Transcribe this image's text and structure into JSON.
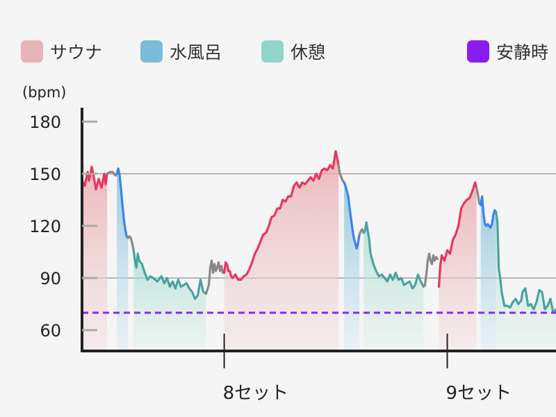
{
  "legend": [
    {
      "label": "サウナ",
      "color": "#e8b4b8"
    },
    {
      "label": "水風呂",
      "color": "#7bbcd9"
    },
    {
      "label": "休憩",
      "color": "#93d4c8"
    },
    {
      "label": "安静時",
      "color": "#8a1cf0"
    }
  ],
  "chart_data": {
    "type": "line",
    "title": "",
    "ylabel": "(bpm)",
    "ylim": [
      48,
      190
    ],
    "xlim": [
      0,
      340
    ],
    "yticks": [
      60,
      90,
      120,
      150,
      180
    ],
    "xticks": [
      {
        "x": 102,
        "label": "8セット"
      },
      {
        "x": 262,
        "label": "9セット"
      }
    ],
    "resting_hr": 70,
    "grid": "horizontal at 90 and 150",
    "phase_colors": {
      "sauna": "#e8365e",
      "cold": "#3b82f0",
      "rest": "#4aa39e",
      "transition": "#888888"
    },
    "series": [
      {
        "phase": "sauna",
        "points": [
          [
            0,
            146
          ],
          [
            2,
            143
          ],
          [
            4,
            151
          ],
          [
            5,
            146
          ],
          [
            7,
            154
          ],
          [
            8,
            150
          ],
          [
            10,
            141
          ],
          [
            12,
            147
          ],
          [
            14,
            142
          ],
          [
            16,
            150
          ],
          [
            17,
            144
          ],
          [
            18,
            150
          ]
        ]
      },
      {
        "phase": "transition",
        "points": [
          [
            18,
            150
          ],
          [
            20,
            151
          ],
          [
            22,
            151
          ],
          [
            24,
            149
          ],
          [
            25,
            150
          ]
        ]
      },
      {
        "phase": "cold",
        "points": [
          [
            25,
            150
          ],
          [
            26,
            153
          ],
          [
            27,
            149
          ],
          [
            28,
            141
          ],
          [
            29,
            132
          ],
          [
            30,
            124
          ],
          [
            31,
            118
          ],
          [
            32,
            114
          ],
          [
            33,
            113
          ]
        ]
      },
      {
        "phase": "transition",
        "points": [
          [
            33,
            113
          ],
          [
            34,
            114
          ],
          [
            35,
            113
          ],
          [
            36,
            110
          ],
          [
            37,
            106
          ]
        ]
      },
      {
        "phase": "rest",
        "points": [
          [
            37,
            106
          ],
          [
            38,
            100
          ],
          [
            39,
            96
          ],
          [
            40,
            104
          ],
          [
            41,
            100
          ],
          [
            43,
            98
          ],
          [
            45,
            93
          ],
          [
            47,
            89
          ],
          [
            49,
            91
          ],
          [
            51,
            90
          ],
          [
            54,
            88
          ],
          [
            57,
            91
          ],
          [
            59,
            87
          ],
          [
            61,
            90
          ],
          [
            63,
            85
          ],
          [
            65,
            88
          ],
          [
            67,
            84
          ],
          [
            69,
            89
          ],
          [
            71,
            85
          ],
          [
            73,
            86
          ],
          [
            75,
            87
          ],
          [
            77,
            84
          ],
          [
            79,
            82
          ],
          [
            81,
            78
          ],
          [
            83,
            80
          ],
          [
            85,
            89
          ],
          [
            87,
            82
          ],
          [
            89,
            81
          ]
        ]
      },
      {
        "phase": "transition",
        "points": [
          [
            89,
            81
          ],
          [
            91,
            86
          ],
          [
            92,
            96
          ],
          [
            93,
            100
          ],
          [
            94,
            93
          ],
          [
            95,
            98
          ],
          [
            96,
            94
          ],
          [
            97,
            96
          ],
          [
            98,
            99
          ],
          [
            99,
            94
          ],
          [
            100,
            97
          ],
          [
            101,
            93
          ]
        ]
      },
      {
        "phase": "sauna",
        "points": [
          [
            102,
            93
          ],
          [
            103,
            99
          ],
          [
            104,
            98
          ],
          [
            105,
            94
          ],
          [
            106,
            94
          ],
          [
            107,
            91
          ],
          [
            108,
            90
          ],
          [
            110,
            92
          ],
          [
            112,
            89
          ],
          [
            114,
            89
          ],
          [
            116,
            91
          ],
          [
            118,
            92
          ],
          [
            120,
            95
          ],
          [
            122,
            99
          ],
          [
            124,
            104
          ],
          [
            126,
            107
          ],
          [
            128,
            111
          ],
          [
            130,
            115
          ],
          [
            132,
            116
          ],
          [
            134,
            120
          ],
          [
            136,
            125
          ],
          [
            138,
            126
          ],
          [
            140,
            130
          ],
          [
            142,
            130
          ],
          [
            144,
            135
          ],
          [
            146,
            134
          ],
          [
            148,
            137
          ],
          [
            150,
            137
          ],
          [
            152,
            143
          ],
          [
            154,
            145
          ],
          [
            156,
            142
          ],
          [
            158,
            145
          ],
          [
            160,
            144
          ],
          [
            162,
            146
          ],
          [
            164,
            148
          ],
          [
            166,
            146
          ],
          [
            168,
            150
          ],
          [
            170,
            147
          ],
          [
            172,
            152
          ],
          [
            174,
            153
          ],
          [
            176,
            152
          ],
          [
            178,
            155
          ],
          [
            180,
            153
          ],
          [
            182,
            163
          ],
          [
            184,
            155
          ]
        ]
      },
      {
        "phase": "transition",
        "points": [
          [
            184,
            155
          ],
          [
            185,
            150
          ],
          [
            186,
            148
          ],
          [
            187,
            146
          ],
          [
            188,
            145
          ]
        ]
      },
      {
        "phase": "cold",
        "points": [
          [
            188,
            145
          ],
          [
            189,
            143
          ],
          [
            190,
            140
          ],
          [
            191,
            137
          ],
          [
            192,
            130
          ],
          [
            193,
            124
          ],
          [
            194,
            118
          ],
          [
            195,
            113
          ],
          [
            196,
            110
          ],
          [
            197,
            107
          ],
          [
            198,
            110
          ],
          [
            199,
            115
          ]
        ]
      },
      {
        "phase": "transition",
        "points": [
          [
            199,
            115
          ],
          [
            200,
            117
          ],
          [
            201,
            118
          ],
          [
            202,
            116
          ]
        ]
      },
      {
        "phase": "rest",
        "points": [
          [
            202,
            116
          ],
          [
            203,
            117
          ],
          [
            204,
            122
          ],
          [
            205,
            117
          ],
          [
            206,
            112
          ],
          [
            207,
            104
          ],
          [
            209,
            98
          ],
          [
            211,
            94
          ],
          [
            213,
            91
          ],
          [
            215,
            92
          ],
          [
            217,
            90
          ],
          [
            219,
            88
          ],
          [
            221,
            92
          ],
          [
            223,
            89
          ],
          [
            225,
            93
          ],
          [
            227,
            89
          ],
          [
            229,
            90
          ],
          [
            231,
            86
          ],
          [
            233,
            87
          ],
          [
            235,
            88
          ],
          [
            237,
            84
          ],
          [
            239,
            86
          ],
          [
            241,
            92
          ],
          [
            243,
            88
          ],
          [
            245,
            85
          ]
        ]
      },
      {
        "phase": "transition",
        "points": [
          [
            245,
            85
          ],
          [
            246,
            86
          ],
          [
            247,
            92
          ],
          [
            248,
            100
          ],
          [
            249,
            104
          ],
          [
            250,
            100
          ],
          [
            251,
            98
          ],
          [
            252,
            103
          ],
          [
            253,
            100
          ],
          [
            254,
            102
          ],
          [
            255,
            101
          ]
        ]
      },
      {
        "phase": "sauna",
        "points": [
          [
            256,
            85
          ],
          [
            257,
            97
          ],
          [
            258,
            103
          ],
          [
            260,
            100
          ],
          [
            262,
            106
          ],
          [
            264,
            104
          ],
          [
            266,
            112
          ],
          [
            268,
            115
          ],
          [
            270,
            120
          ],
          [
            272,
            130
          ],
          [
            274,
            133
          ],
          [
            276,
            135
          ],
          [
            278,
            136
          ],
          [
            280,
            140
          ],
          [
            282,
            145
          ],
          [
            283,
            142
          ]
        ]
      },
      {
        "phase": "transition",
        "points": [
          [
            283,
            142
          ],
          [
            284,
            138
          ],
          [
            285,
            133
          ],
          [
            286,
            132
          ]
        ]
      },
      {
        "phase": "cold",
        "points": [
          [
            286,
            132
          ],
          [
            287,
            137
          ],
          [
            288,
            127
          ],
          [
            289,
            121
          ],
          [
            290,
            120
          ],
          [
            291,
            121
          ],
          [
            292,
            120
          ],
          [
            293,
            119
          ],
          [
            294,
            121
          ],
          [
            295,
            126
          ],
          [
            296,
            129
          ],
          [
            297,
            128
          ]
        ]
      },
      {
        "phase": "rest",
        "points": [
          [
            297,
            128
          ],
          [
            298,
            122
          ],
          [
            299,
            95
          ],
          [
            300,
            90
          ],
          [
            301,
            82
          ],
          [
            302,
            78
          ],
          [
            303,
            74
          ],
          [
            305,
            74
          ],
          [
            307,
            73
          ],
          [
            309,
            76
          ],
          [
            311,
            78
          ],
          [
            313,
            75
          ],
          [
            315,
            77
          ],
          [
            316,
            82
          ],
          [
            318,
            84
          ],
          [
            319,
            79
          ],
          [
            320,
            74
          ],
          [
            322,
            75
          ],
          [
            324,
            72
          ],
          [
            326,
            76
          ],
          [
            328,
            83
          ],
          [
            330,
            82
          ],
          [
            331,
            77
          ],
          [
            332,
            72
          ],
          [
            334,
            74
          ],
          [
            336,
            78
          ],
          [
            338,
            70
          ],
          [
            340,
            72
          ]
        ]
      }
    ]
  }
}
